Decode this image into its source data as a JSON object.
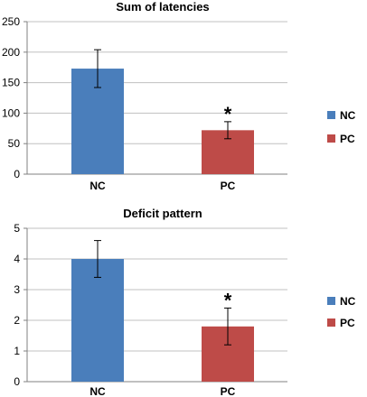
{
  "chart_data": [
    {
      "type": "bar",
      "title": "Sum of latencies",
      "categories": [
        "NC",
        "PC"
      ],
      "values": [
        173,
        72
      ],
      "error": [
        31,
        14
      ],
      "colors": [
        "#4A7EBB",
        "#BE4B48"
      ],
      "ylim": [
        0,
        250
      ],
      "yticks": [
        "0",
        "50",
        "100",
        "150",
        "200",
        "250"
      ],
      "annotations": [
        {
          "category": "PC",
          "text": "*"
        }
      ],
      "legend": {
        "placement": "right",
        "entries": [
          "NC",
          "PC"
        ]
      },
      "grid": true
    },
    {
      "type": "bar",
      "title": "Deficit pattern",
      "categories": [
        "NC",
        "PC"
      ],
      "values": [
        4.0,
        1.8
      ],
      "error": [
        0.6,
        0.6
      ],
      "colors": [
        "#4A7EBB",
        "#BE4B48"
      ],
      "ylim": [
        0,
        5
      ],
      "yticks": [
        "0",
        "1",
        "2",
        "3",
        "4",
        "5"
      ],
      "annotations": [
        {
          "category": "PC",
          "text": "*"
        }
      ],
      "legend": {
        "placement": "right",
        "entries": [
          "NC",
          "PC"
        ]
      },
      "grid": true
    }
  ]
}
